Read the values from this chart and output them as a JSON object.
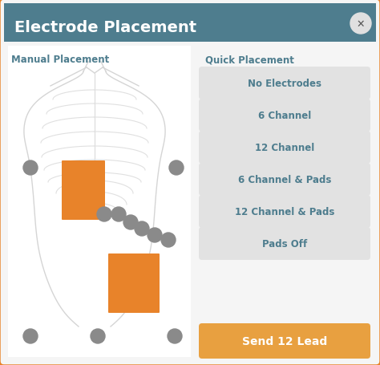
{
  "title": "Electrode Placement",
  "header_bg": "#4e7d8e",
  "header_text_color": "#ffffff",
  "border_color": "#e8832a",
  "bg_color": "#f5f5f5",
  "body_area_bg": "#ffffff",
  "manual_label": "Manual Placement",
  "quick_label": "Quick Placement",
  "section_label_color": "#4e7d8e",
  "buttons": [
    "No Electrodes",
    "6 Channel",
    "12 Channel",
    "6 Channel & Pads",
    "12 Channel & Pads",
    "Pads Off"
  ],
  "button_bg": "#e2e2e2",
  "button_text_color": "#4e7d8e",
  "send_button_text": "Send 12 Lead",
  "send_button_bg": "#e8a040",
  "send_button_text_color": "#ffffff",
  "pad_color": "#e8832a",
  "electrode_dot_color": "#8a8a8a",
  "body_outline_color": "#d5d5d5",
  "rib_color": "#e0e0e0",
  "close_button_color": "#e0e0e0",
  "close_x_color": "#555555",
  "figw": 4.74,
  "figh": 4.56,
  "dpi": 100
}
